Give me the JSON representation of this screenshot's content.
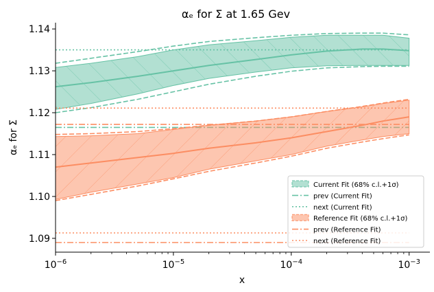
{
  "chart_data": {
    "type": "line",
    "title": "αₑ for Σ at 1.65 Gev",
    "xlabel": "x",
    "ylabel": "αₑ for Σ",
    "xscale": "log",
    "xlim": [
      1e-06,
      0.0015
    ],
    "ylim": [
      1.0867,
      1.1415
    ],
    "x_ticks": [
      {
        "value": 1e-06,
        "base": "10",
        "exp": "−6"
      },
      {
        "value": 1e-05,
        "base": "10",
        "exp": "−5"
      },
      {
        "value": 0.0001,
        "base": "10",
        "exp": "−4"
      },
      {
        "value": 0.001,
        "base": "10",
        "exp": "−3"
      }
    ],
    "y_ticks": [
      {
        "value": 1.09,
        "label": "1.09"
      },
      {
        "value": 1.1,
        "label": "1.10"
      },
      {
        "value": 1.11,
        "label": "1.11"
      },
      {
        "value": 1.12,
        "label": "1.12"
      },
      {
        "value": 1.13,
        "label": "1.13"
      },
      {
        "value": 1.14,
        "label": "1.14"
      }
    ],
    "x": [
      1e-06,
      2e-06,
      5e-06,
      1e-05,
      2e-05,
      5e-05,
      0.0001,
      0.0002,
      0.0004,
      0.0006,
      0.001
    ],
    "colors": {
      "current": "#66c2a5",
      "reference": "#fc8d62"
    },
    "series": [
      {
        "key": "current",
        "band_label": "Current Fit (68% c.l.+1σ)",
        "central": [
          1.1262,
          1.1272,
          1.1287,
          1.13,
          1.1313,
          1.1327,
          1.1338,
          1.1347,
          1.1352,
          1.1352,
          1.1348
        ],
        "lower": [
          1.1208,
          1.1222,
          1.1245,
          1.1265,
          1.1282,
          1.1297,
          1.1307,
          1.1312,
          1.1313,
          1.1313,
          1.1313
        ],
        "upper": [
          1.1308,
          1.1318,
          1.1334,
          1.135,
          1.1362,
          1.1372,
          1.138,
          1.1385,
          1.1385,
          1.1385,
          1.1378
        ],
        "prev_label": "prev (Current Fit)",
        "prev": [
          1.1165,
          1.1165,
          1.1165,
          1.1165,
          1.1165,
          1.1165,
          1.1165,
          1.1165,
          1.1165,
          1.1165,
          1.1165
        ],
        "next_label": "next (Current Fit)",
        "next": [
          1.135,
          1.135,
          1.135,
          1.135,
          1.135,
          1.135,
          1.135,
          1.135,
          1.135,
          1.135,
          1.135
        ],
        "dashed_upper": [
          1.1318,
          1.133,
          1.1346,
          1.1359,
          1.137,
          1.1379,
          1.1385,
          1.1389,
          1.139,
          1.139,
          1.1386
        ],
        "dashed_lower": [
          1.12,
          1.1212,
          1.1232,
          1.125,
          1.1268,
          1.1287,
          1.1299,
          1.1307,
          1.131,
          1.1311,
          1.1311
        ]
      },
      {
        "key": "reference",
        "band_label": "Reference Fit (68% c.l.+1σ)",
        "central": [
          1.107,
          1.108,
          1.1093,
          1.1103,
          1.1115,
          1.1128,
          1.114,
          1.1155,
          1.117,
          1.118,
          1.119
        ],
        "lower": [
          1.0993,
          1.101,
          1.103,
          1.1045,
          1.1065,
          1.1085,
          1.11,
          1.112,
          1.1135,
          1.1143,
          1.115
        ],
        "upper": [
          1.1143,
          1.1145,
          1.115,
          1.116,
          1.117,
          1.118,
          1.119,
          1.1203,
          1.1214,
          1.1222,
          1.123
        ],
        "prev_label": "prev (Reference Fit)",
        "prev": [
          1.089,
          1.089,
          1.089,
          1.089,
          1.089,
          1.089,
          1.089,
          1.089,
          1.089,
          1.089,
          1.089
        ],
        "next_label": "next (Reference Fit)",
        "next": [
          1.0913,
          1.0913,
          1.0913,
          1.0913,
          1.0913,
          1.0913,
          1.0913,
          1.0913,
          1.0913,
          1.0913,
          1.0913
        ],
        "next_alt": [
          1.1211,
          1.1211,
          1.1211,
          1.1211,
          1.1211,
          1.1211,
          1.1211,
          1.1211,
          1.1211,
          1.1211,
          1.1211
        ],
        "prev_alt": [
          1.1172,
          1.1172,
          1.1172,
          1.1172,
          1.1172,
          1.1172,
          1.1172,
          1.1172,
          1.1172,
          1.1172,
          1.1172
        ],
        "dashed_upper": [
          1.1148,
          1.115,
          1.1155,
          1.1162,
          1.117,
          1.118,
          1.119,
          1.1203,
          1.1215,
          1.1223,
          1.1232
        ],
        "dashed_lower": [
          1.099,
          1.1005,
          1.1025,
          1.1042,
          1.106,
          1.108,
          1.1096,
          1.1115,
          1.113,
          1.1138,
          1.1147
        ]
      }
    ],
    "legend": {
      "placement": "lower-right",
      "entries": [
        {
          "label": "Current Fit (68% c.l.+1σ)",
          "style": "band",
          "series": "current"
        },
        {
          "label": "prev (Current Fit)",
          "style": "dashdot",
          "series": "current"
        },
        {
          "label": "next (Current Fit)",
          "style": "dotted",
          "series": "current"
        },
        {
          "label": "Reference Fit (68% c.l.+1σ)",
          "style": "band",
          "series": "reference"
        },
        {
          "label": "prev (Reference Fit)",
          "style": "dashdot",
          "series": "reference"
        },
        {
          "label": "next (Reference Fit)",
          "style": "dotted",
          "series": "reference"
        }
      ]
    },
    "grid": false
  }
}
